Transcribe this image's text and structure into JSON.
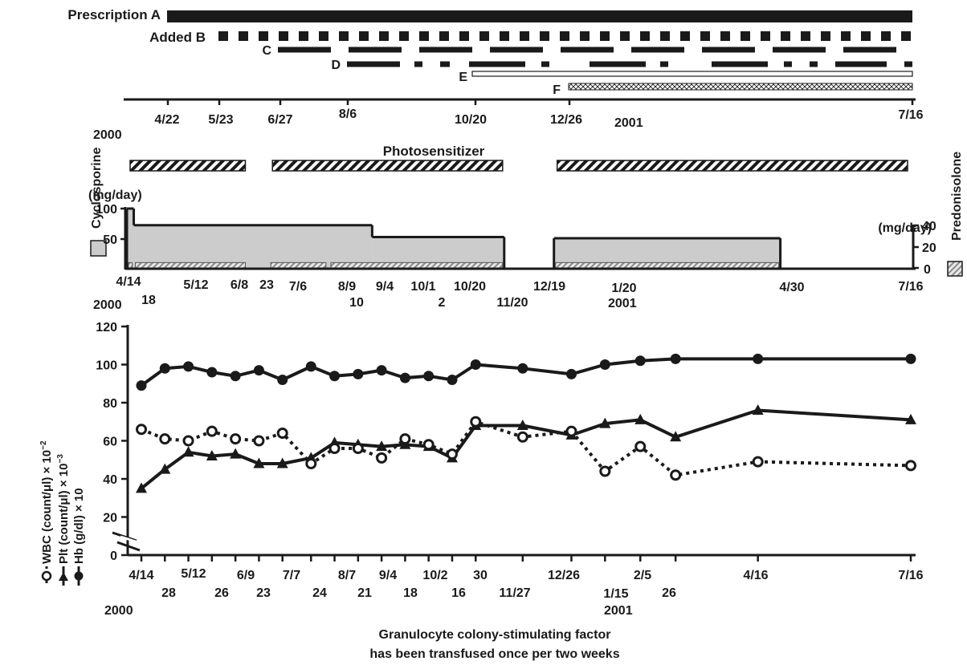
{
  "chart_data": [
    {
      "type": "timeline",
      "year_labels": [
        "2000",
        "2001"
      ],
      "date_labels": [
        "4/22",
        "5/23",
        "6/27",
        "8/6",
        "10/20",
        "12/26",
        "7/16"
      ],
      "bars": [
        {
          "name": "Prescription A",
          "style": "solid",
          "start": "2000-04-14",
          "end": "2001-07-16"
        },
        {
          "name": "Added B",
          "style": "dotted",
          "start": "2000-04-22",
          "end": "2001-07-16"
        },
        {
          "name": "C",
          "style": "dashed",
          "start": "2000-05-23",
          "end": "2001-07-16"
        },
        {
          "name": "D",
          "style": "dash-dot",
          "start": "2000-06-27",
          "end": "2001-07-16"
        },
        {
          "name": "E",
          "style": "hollow",
          "start": "2000-10-20",
          "end": "2001-07-16"
        },
        {
          "name": "F",
          "style": "crosshatch",
          "start": "2000-12-26",
          "end": "2001-07-16"
        }
      ]
    },
    {
      "type": "area",
      "annotation": "Photosensitizer",
      "left_axis_label": "Cyclosporine",
      "left_unit": "(mg/day)",
      "right_axis_label": "Predonisolone",
      "right_unit": "(mg/day)",
      "left_ticks": [
        "100",
        "50"
      ],
      "right_ticks": [
        "40",
        "20",
        "0"
      ],
      "ylim_left": [
        0,
        100
      ],
      "ylim_right": [
        0,
        40
      ],
      "date_labels_upper": [
        "4/14",
        "5/12",
        "6/8",
        "23",
        "7/6",
        "8/9",
        "9/4",
        "10/1",
        "10/20",
        "12/19",
        "1/20",
        "4/30",
        "7/16"
      ],
      "date_labels_lower": [
        "18",
        "10",
        "2",
        "11/20"
      ],
      "year_labels": [
        "2000",
        "2001"
      ],
      "photosensitizer_periods": [
        {
          "start": "2000-04-14",
          "end": "2000-06-23"
        },
        {
          "start": "2000-07-06",
          "end": "2000-11-20"
        },
        {
          "start": "2000-12-19",
          "end": "2001-07-16"
        }
      ],
      "cyclosporine_segments": [
        {
          "start": "2000-04-14",
          "end": "2000-04-18",
          "value": 100
        },
        {
          "start": "2000-04-18",
          "end": "2000-09-04",
          "value": 72
        },
        {
          "start": "2000-09-04",
          "end": "2000-11-20",
          "value": 52
        },
        {
          "start": "2000-12-19",
          "end": "2001-04-30",
          "value": 50
        }
      ],
      "predonisolone_segments": [
        {
          "start": "2000-04-14",
          "end": "2000-04-18",
          "value": 5
        },
        {
          "start": "2000-04-18",
          "end": "2000-06-23",
          "value": 5
        },
        {
          "start": "2000-07-06",
          "end": "2000-08-09",
          "value": 5
        },
        {
          "start": "2000-08-10",
          "end": "2000-11-20",
          "value": 5
        },
        {
          "start": "2000-12-19",
          "end": "2001-04-30",
          "value": 5
        }
      ]
    },
    {
      "type": "line",
      "ylim": [
        0,
        120
      ],
      "y_ticks": [
        "0",
        "20",
        "40",
        "60",
        "80",
        "100",
        "120"
      ],
      "x_labels_upper": [
        "4/14",
        "5/12",
        "6/9",
        "7/7",
        "8/7",
        "9/4",
        "10/2",
        "30",
        "12/26",
        "2/5",
        "4/16",
        "7/16"
      ],
      "x_labels_lower": [
        "28",
        "26",
        "23",
        "24",
        "21",
        "18",
        "16",
        "11/27",
        "1/15",
        "26"
      ],
      "year_labels": [
        "2000",
        "2001"
      ],
      "legend_labels": [
        "WBC (count/μl) × 10",
        "Plt (count/μl) × 10",
        "Hb (g/dl) × 10"
      ],
      "legend_exponents": [
        "−2",
        "−3"
      ],
      "footnote_lines": [
        "Granulocyte colony-stimulating factor",
        "has been transfused once per two weeks"
      ],
      "x": [
        "2000-04-14",
        "2000-04-28",
        "2000-05-12",
        "2000-05-26",
        "2000-06-09",
        "2000-06-23",
        "2000-07-07",
        "2000-07-24",
        "2000-08-07",
        "2000-08-21",
        "2000-09-04",
        "2000-09-18",
        "2000-10-02",
        "2000-10-16",
        "2000-10-30",
        "2000-11-27",
        "2000-12-26",
        "2001-01-15",
        "2001-02-05",
        "2001-02-26",
        "2001-04-16",
        "2001-07-16"
      ],
      "series": [
        {
          "name": "Hb",
          "marker": "filled-circle",
          "style": "solid",
          "values": [
            89,
            98,
            99,
            96,
            94,
            97,
            92,
            99,
            94,
            95,
            97,
            93,
            94,
            92,
            100,
            98,
            95,
            100,
            102,
            103,
            103,
            103
          ]
        },
        {
          "name": "Plt",
          "marker": "triangle",
          "style": "solid",
          "values": [
            35,
            45,
            54,
            52,
            53,
            48,
            48,
            51,
            59,
            58,
            57,
            58,
            57,
            51,
            68,
            68,
            63,
            69,
            71,
            62,
            76,
            71
          ]
        },
        {
          "name": "WBC",
          "marker": "open-circle",
          "style": "dotted",
          "values": [
            66,
            61,
            60,
            65,
            61,
            60,
            64,
            48,
            56,
            56,
            51,
            61,
            58,
            53,
            70,
            62,
            65,
            44,
            57,
            42,
            49,
            47
          ]
        }
      ]
    }
  ]
}
